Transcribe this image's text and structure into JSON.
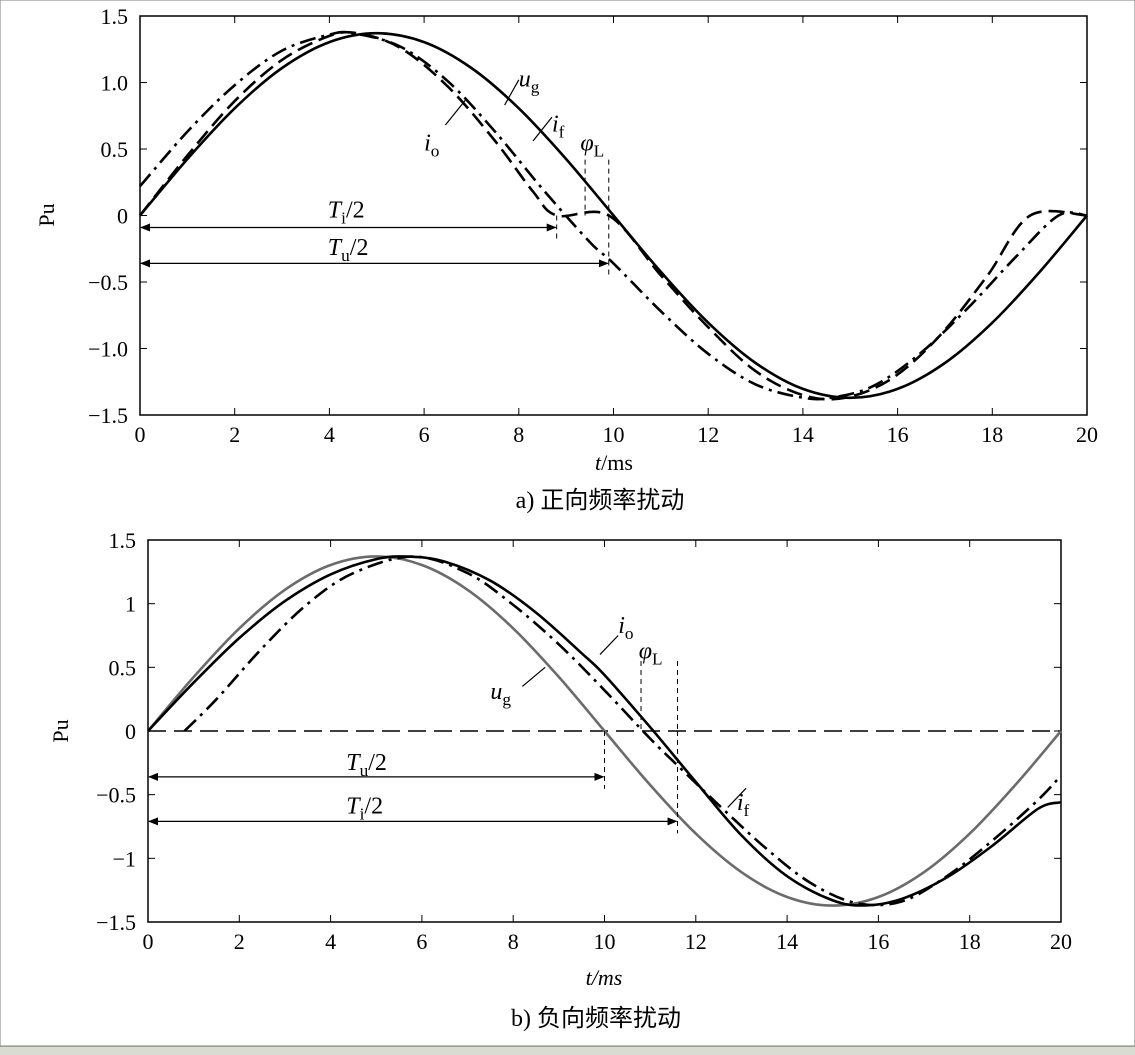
{
  "chart_data": [
    {
      "type": "line",
      "panel_id": "a",
      "caption": "a) 正向频率扰动",
      "xlabel_var": "t",
      "xlabel_unit": "/ms",
      "ylabel": "Pu",
      "xlim": [
        0,
        20
      ],
      "ylim": [
        -1.5,
        1.5
      ],
      "xticks": [
        0,
        2,
        4,
        6,
        8,
        10,
        12,
        14,
        16,
        18,
        20
      ],
      "yticks": [
        1.5,
        1.0,
        0.5,
        0,
        -0.5,
        -1.0,
        -1.5
      ],
      "ytick_labels": [
        "1.5",
        "1.0",
        "0.5",
        "0",
        "−0.5",
        "−1.0",
        "−1.5"
      ],
      "series": [
        {
          "key": "ug",
          "style": "solid",
          "color": "#000000",
          "x": [
            0,
            1,
            2,
            3,
            4,
            5,
            6,
            7,
            8,
            9,
            10,
            11,
            12,
            13,
            14,
            15,
            16,
            17,
            18,
            19,
            20
          ],
          "y": [
            0,
            0.424,
            0.806,
            1.109,
            1.304,
            1.371,
            1.304,
            1.109,
            0.806,
            0.424,
            0,
            -0.424,
            -0.806,
            -1.109,
            -1.304,
            -1.371,
            -1.304,
            -1.109,
            -0.806,
            -0.424,
            0
          ]
        },
        {
          "key": "if",
          "style": "dashed",
          "color": "#000000",
          "x": [
            0,
            1,
            2,
            3,
            4,
            4.6,
            5.5,
            6.5,
            7.5,
            8.3,
            8.8,
            9.9,
            11,
            12,
            13,
            14,
            14.9,
            15.9,
            16.9,
            17.9,
            18.8,
            20
          ],
          "y": [
            0,
            0.45,
            0.86,
            1.17,
            1.35,
            1.37,
            1.26,
            0.97,
            0.56,
            0.18,
            0,
            0,
            -0.45,
            -0.84,
            -1.17,
            -1.35,
            -1.37,
            -1.22,
            -0.9,
            -0.45,
            0,
            0
          ]
        },
        {
          "key": "io",
          "style": "dashdot",
          "color": "#000000",
          "x": [
            0,
            1,
            2,
            3,
            4,
            4.5,
            5.5,
            6.5,
            7.5,
            8.5,
            9.5,
            10,
            11,
            12,
            13,
            14,
            14.6,
            15.5,
            16.5,
            17.5,
            18.5,
            19.4,
            20
          ],
          "y": [
            0.22,
            0.63,
            0.98,
            1.24,
            1.36,
            1.37,
            1.27,
            1.01,
            0.63,
            0.2,
            -0.2,
            -0.36,
            -0.72,
            -1.04,
            -1.27,
            -1.37,
            -1.37,
            -1.28,
            -1.03,
            -0.69,
            -0.31,
            0,
            0
          ]
        }
      ],
      "labels": [
        {
          "sym": "u",
          "sub": "g",
          "x": 8.0,
          "y": 0.97
        },
        {
          "sym": "i",
          "sub": "f",
          "x": 8.7,
          "y": 0.63
        },
        {
          "sym": "i",
          "sub": "o",
          "x": 6.0,
          "y": 0.49
        },
        {
          "sym": "φ",
          "sub": "L",
          "x": 9.3,
          "y": 0.49
        }
      ],
      "annotations": [
        {
          "sym": "T",
          "sub": "i",
          "rest": "/2",
          "from": 0,
          "to": 8.8,
          "y": -0.09,
          "label_x": 4.6,
          "label_y": 0.03
        },
        {
          "sym": "T",
          "sub": "u",
          "rest": "/2",
          "from": 0,
          "to": 9.9,
          "y": -0.36,
          "label_x": 4.6,
          "label_y": -0.25
        }
      ]
    },
    {
      "type": "line",
      "panel_id": "b",
      "caption": "b) 负向频率扰动",
      "xlabel_var": "t",
      "xlabel_unit": "/ms",
      "ylabel": "Pu",
      "xlim": [
        0,
        20
      ],
      "ylim": [
        -1.5,
        1.5
      ],
      "xticks": [
        0,
        2,
        4,
        6,
        8,
        10,
        12,
        14,
        16,
        18,
        20
      ],
      "yticks": [
        1.5,
        1,
        0.5,
        0,
        -0.5,
        -1,
        -1.5
      ],
      "ytick_labels": [
        "1.5",
        "1",
        "0.5",
        "0",
        "−0.5",
        "−1",
        "−1.5"
      ],
      "series": [
        {
          "key": "ug",
          "style": "solid",
          "color": "#6b6b6b",
          "x": [
            0,
            1,
            2,
            3,
            4,
            5,
            6,
            7,
            8,
            9,
            10,
            11,
            12,
            13,
            14,
            15,
            16,
            17,
            18,
            19,
            20
          ],
          "y": [
            0,
            0.424,
            0.806,
            1.109,
            1.304,
            1.371,
            1.304,
            1.109,
            0.806,
            0.424,
            0,
            -0.424,
            -0.806,
            -1.109,
            -1.304,
            -1.371,
            -1.304,
            -1.109,
            -0.806,
            -0.424,
            0
          ]
        },
        {
          "key": "if",
          "style": "dashdot",
          "color": "#000000",
          "x": [
            0.8,
            1.5,
            2.5,
            3.5,
            4.5,
            5.8,
            7,
            8,
            9,
            10,
            11,
            11.6,
            12.5,
            13.5,
            14.5,
            15.5,
            16.5,
            17.5,
            18.5,
            19.5,
            20
          ],
          "y": [
            0,
            0.25,
            0.65,
            1.0,
            1.24,
            1.37,
            1.24,
            0.99,
            0.68,
            0.32,
            -0.06,
            -0.27,
            -0.58,
            -0.91,
            -1.19,
            -1.35,
            -1.34,
            -1.14,
            -0.86,
            -0.54,
            -0.35
          ]
        },
        {
          "key": "io",
          "style": "solid",
          "color": "#000000",
          "x": [
            0,
            1,
            2,
            3,
            4,
            5,
            5.7,
            6.5,
            7.5,
            8.5,
            9.5,
            10,
            11,
            12,
            13,
            14,
            15,
            15.7,
            16.5,
            17.5,
            18.5,
            19.5,
            20
          ],
          "y": [
            0,
            0.38,
            0.73,
            1.02,
            1.23,
            1.35,
            1.37,
            1.33,
            1.18,
            0.93,
            0.61,
            0.44,
            0.03,
            -0.4,
            -0.82,
            -1.14,
            -1.33,
            -1.37,
            -1.32,
            -1.15,
            -0.9,
            -0.61,
            -0.56
          ]
        }
      ],
      "zero_line": "dashed",
      "labels": [
        {
          "sym": "i",
          "sub": "o",
          "x": 10.3,
          "y": 0.77
        },
        {
          "sym": "φ",
          "sub": "L",
          "x": 10.75,
          "y": 0.57
        },
        {
          "sym": "u",
          "sub": "g",
          "x": 7.5,
          "y": 0.25
        },
        {
          "sym": "i",
          "sub": "f",
          "x": 12.9,
          "y": -0.62
        }
      ],
      "annotations": [
        {
          "sym": "T",
          "sub": "u",
          "rest": "/2",
          "from": 0,
          "to": 10,
          "y": -0.36,
          "label_x": 5.0,
          "label_y": -0.26
        },
        {
          "sym": "T",
          "sub": "i",
          "rest": "/2",
          "from": 0,
          "to": 11.6,
          "y": -0.71,
          "label_x": 5.0,
          "label_y": -0.6
        }
      ]
    }
  ]
}
